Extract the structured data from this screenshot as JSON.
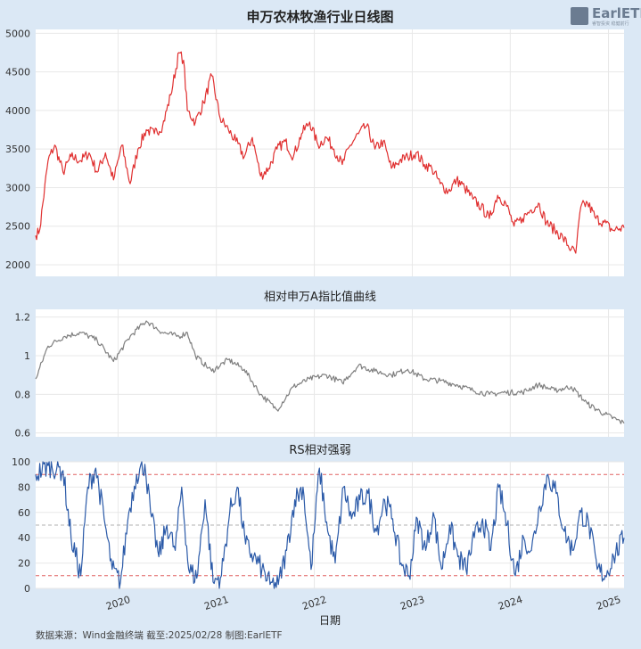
{
  "chart_data": [
    {
      "type": "line",
      "title": "申万农林牧渔行业日线图",
      "color": "#e03030",
      "ylim": [
        1850,
        5050
      ],
      "yticks": [
        2000,
        2500,
        3000,
        3500,
        4000,
        4500,
        5000
      ],
      "series": [
        {
          "x": [
            "2019-02-28",
            "2019-03-15",
            "2019-04-15",
            "2019-05-10",
            "2019-06-10",
            "2019-07-10",
            "2019-08-15",
            "2019-09-15",
            "2019-10-15",
            "2019-11-15",
            "2019-12-15",
            "2020-01-15",
            "2020-02-15",
            "2020-03-15",
            "2020-04-15",
            "2020-05-15",
            "2020-06-15",
            "2020-07-15",
            "2020-08-15",
            "2020-09-01",
            "2020-09-15",
            "2020-10-15",
            "2020-11-15",
            "2020-12-15",
            "2021-01-15",
            "2021-02-15",
            "2021-03-15",
            "2021-04-15",
            "2021-05-15",
            "2021-06-15",
            "2021-07-15",
            "2021-08-15",
            "2021-09-15",
            "2021-10-15",
            "2021-11-15",
            "2021-12-15",
            "2022-01-15",
            "2022-02-15",
            "2022-03-15",
            "2022-04-15",
            "2022-05-15",
            "2022-06-15",
            "2022-07-15",
            "2022-08-15",
            "2022-09-15",
            "2022-10-15",
            "2022-11-15",
            "2022-12-15",
            "2023-01-15",
            "2023-02-15",
            "2023-03-15",
            "2023-04-15",
            "2023-05-15",
            "2023-06-15",
            "2023-07-15",
            "2023-08-15",
            "2023-09-15",
            "2023-10-15",
            "2023-11-15",
            "2023-12-15",
            "2024-01-15",
            "2024-02-15",
            "2024-03-15",
            "2024-04-15",
            "2024-05-15",
            "2024-06-15",
            "2024-07-15",
            "2024-08-15",
            "2024-09-01",
            "2024-09-20",
            "2024-10-15",
            "2024-11-15",
            "2024-12-15",
            "2025-01-15",
            "2025-02-28"
          ],
          "y": [
            2380,
            2450,
            3350,
            3550,
            3200,
            3400,
            3350,
            3450,
            3200,
            3450,
            3100,
            3550,
            3050,
            3500,
            3750,
            3700,
            3800,
            4200,
            4750,
            4650,
            4000,
            3850,
            4100,
            4450,
            3900,
            3750,
            3600,
            3400,
            3650,
            3150,
            3250,
            3500,
            3600,
            3400,
            3700,
            3850,
            3550,
            3650,
            3500,
            3300,
            3550,
            3700,
            3800,
            3500,
            3600,
            3250,
            3350,
            3400,
            3450,
            3300,
            3250,
            3050,
            2950,
            3100,
            3000,
            2850,
            2750,
            2600,
            2900,
            2800,
            2500,
            2600,
            2700,
            2800,
            2550,
            2450,
            2350,
            2200,
            2150,
            2750,
            2800,
            2600,
            2550,
            2450,
            2480
          ]
        }
      ]
    },
    {
      "type": "line",
      "title": "相对申万A指比值曲线",
      "color": "#7f7f7f",
      "ylim": [
        0.58,
        1.24
      ],
      "yticks": [
        0.6,
        0.8,
        1.0,
        1.2
      ],
      "series": [
        {
          "x": [
            "2019-02-28",
            "2019-04-15",
            "2019-06-15",
            "2019-08-15",
            "2019-10-15",
            "2019-12-15",
            "2020-02-15",
            "2020-04-15",
            "2020-06-15",
            "2020-08-15",
            "2020-09-15",
            "2020-10-15",
            "2020-12-15",
            "2021-02-15",
            "2021-04-15",
            "2021-06-15",
            "2021-08-15",
            "2021-10-15",
            "2021-12-15",
            "2022-02-15",
            "2022-04-15",
            "2022-06-15",
            "2022-08-15",
            "2022-10-15",
            "2022-12-15",
            "2023-02-15",
            "2023-04-15",
            "2023-06-15",
            "2023-08-15",
            "2023-10-15",
            "2023-12-15",
            "2024-02-15",
            "2024-04-15",
            "2024-06-15",
            "2024-08-15",
            "2024-10-15",
            "2024-12-15",
            "2025-02-28"
          ],
          "y": [
            0.88,
            1.05,
            1.1,
            1.12,
            1.08,
            0.97,
            1.1,
            1.18,
            1.12,
            1.1,
            1.12,
            1.0,
            0.92,
            0.98,
            0.93,
            0.8,
            0.72,
            0.84,
            0.88,
            0.9,
            0.86,
            0.95,
            0.92,
            0.9,
            0.93,
            0.88,
            0.87,
            0.85,
            0.82,
            0.8,
            0.81,
            0.81,
            0.85,
            0.82,
            0.84,
            0.75,
            0.7,
            0.65
          ]
        }
      ]
    },
    {
      "type": "line",
      "title": "RS相对强弱",
      "color": "#2b5aa8",
      "ylim": [
        0,
        100
      ],
      "yticks": [
        0,
        20,
        40,
        60,
        80,
        100
      ],
      "reference_lines": [
        10,
        50,
        90
      ],
      "series": [
        {
          "x": [
            "2019-02-28",
            "2019-04-15",
            "2019-06-10",
            "2019-07-10",
            "2019-08-15",
            "2019-09-10",
            "2019-10-10",
            "2019-11-10",
            "2019-12-10",
            "2020-01-10",
            "2020-02-10",
            "2020-03-10",
            "2020-04-10",
            "2020-05-01",
            "2020-06-01",
            "2020-07-01",
            "2020-08-01",
            "2020-08-25",
            "2020-09-20",
            "2020-10-20",
            "2020-11-20",
            "2020-12-20",
            "2021-01-20",
            "2021-02-20",
            "2021-03-20",
            "2021-04-20",
            "2021-05-20",
            "2021-06-20",
            "2021-07-20",
            "2021-08-20",
            "2021-09-20",
            "2021-10-20",
            "2021-11-20",
            "2021-12-20",
            "2022-01-20",
            "2022-02-20",
            "2022-03-20",
            "2022-04-20",
            "2022-05-20",
            "2022-06-20",
            "2022-07-20",
            "2022-08-20",
            "2022-09-20",
            "2022-10-20",
            "2022-11-20",
            "2022-12-20",
            "2023-01-20",
            "2023-02-20",
            "2023-03-20",
            "2023-04-20",
            "2023-05-20",
            "2023-06-20",
            "2023-07-20",
            "2023-08-20",
            "2023-09-20",
            "2023-10-20",
            "2023-11-20",
            "2023-12-20",
            "2024-01-20",
            "2024-02-20",
            "2024-03-20",
            "2024-04-20",
            "2024-05-20",
            "2024-06-20",
            "2024-07-20",
            "2024-08-20",
            "2024-09-20",
            "2024-10-20",
            "2024-11-20",
            "2024-12-20",
            "2025-01-20",
            "2025-02-28"
          ],
          "y": [
            90,
            97,
            93,
            40,
            10,
            80,
            95,
            55,
            15,
            5,
            60,
            90,
            98,
            60,
            25,
            50,
            30,
            80,
            15,
            8,
            70,
            5,
            10,
            60,
            80,
            35,
            25,
            15,
            3,
            3,
            30,
            70,
            80,
            15,
            95,
            45,
            20,
            80,
            55,
            70,
            75,
            45,
            70,
            55,
            20,
            10,
            55,
            30,
            60,
            15,
            50,
            25,
            15,
            40,
            55,
            30,
            80,
            50,
            10,
            40,
            30,
            65,
            90,
            75,
            45,
            30,
            60,
            50,
            15,
            10,
            25,
            40
          ]
        }
      ]
    }
  ],
  "x_axis": {
    "xlabel": "日期",
    "ticks": [
      {
        "date": "2020-01-01",
        "label": "2020"
      },
      {
        "date": "2021-01-01",
        "label": "2021"
      },
      {
        "date": "2022-01-01",
        "label": "2022"
      },
      {
        "date": "2023-01-01",
        "label": "2023"
      },
      {
        "date": "2024-01-01",
        "label": "2024"
      },
      {
        "date": "2025-01-01",
        "label": "2025"
      }
    ],
    "start": "2019-02-28",
    "end": "2025-02-28"
  },
  "footer": {
    "source": "数据来源：Wind金融终端 截至:2025/02/28 制图:EarlETF"
  },
  "logo": {
    "text": "EarlETF",
    "subtext": "睿智投资 稳健前行"
  },
  "colors": {
    "background": "#dbe8f5",
    "plot_bg": "#ffffff",
    "grid": "#e8e8e8",
    "ref_line_red": "#e06060",
    "ref_line_gray": "#b0b0b0"
  }
}
